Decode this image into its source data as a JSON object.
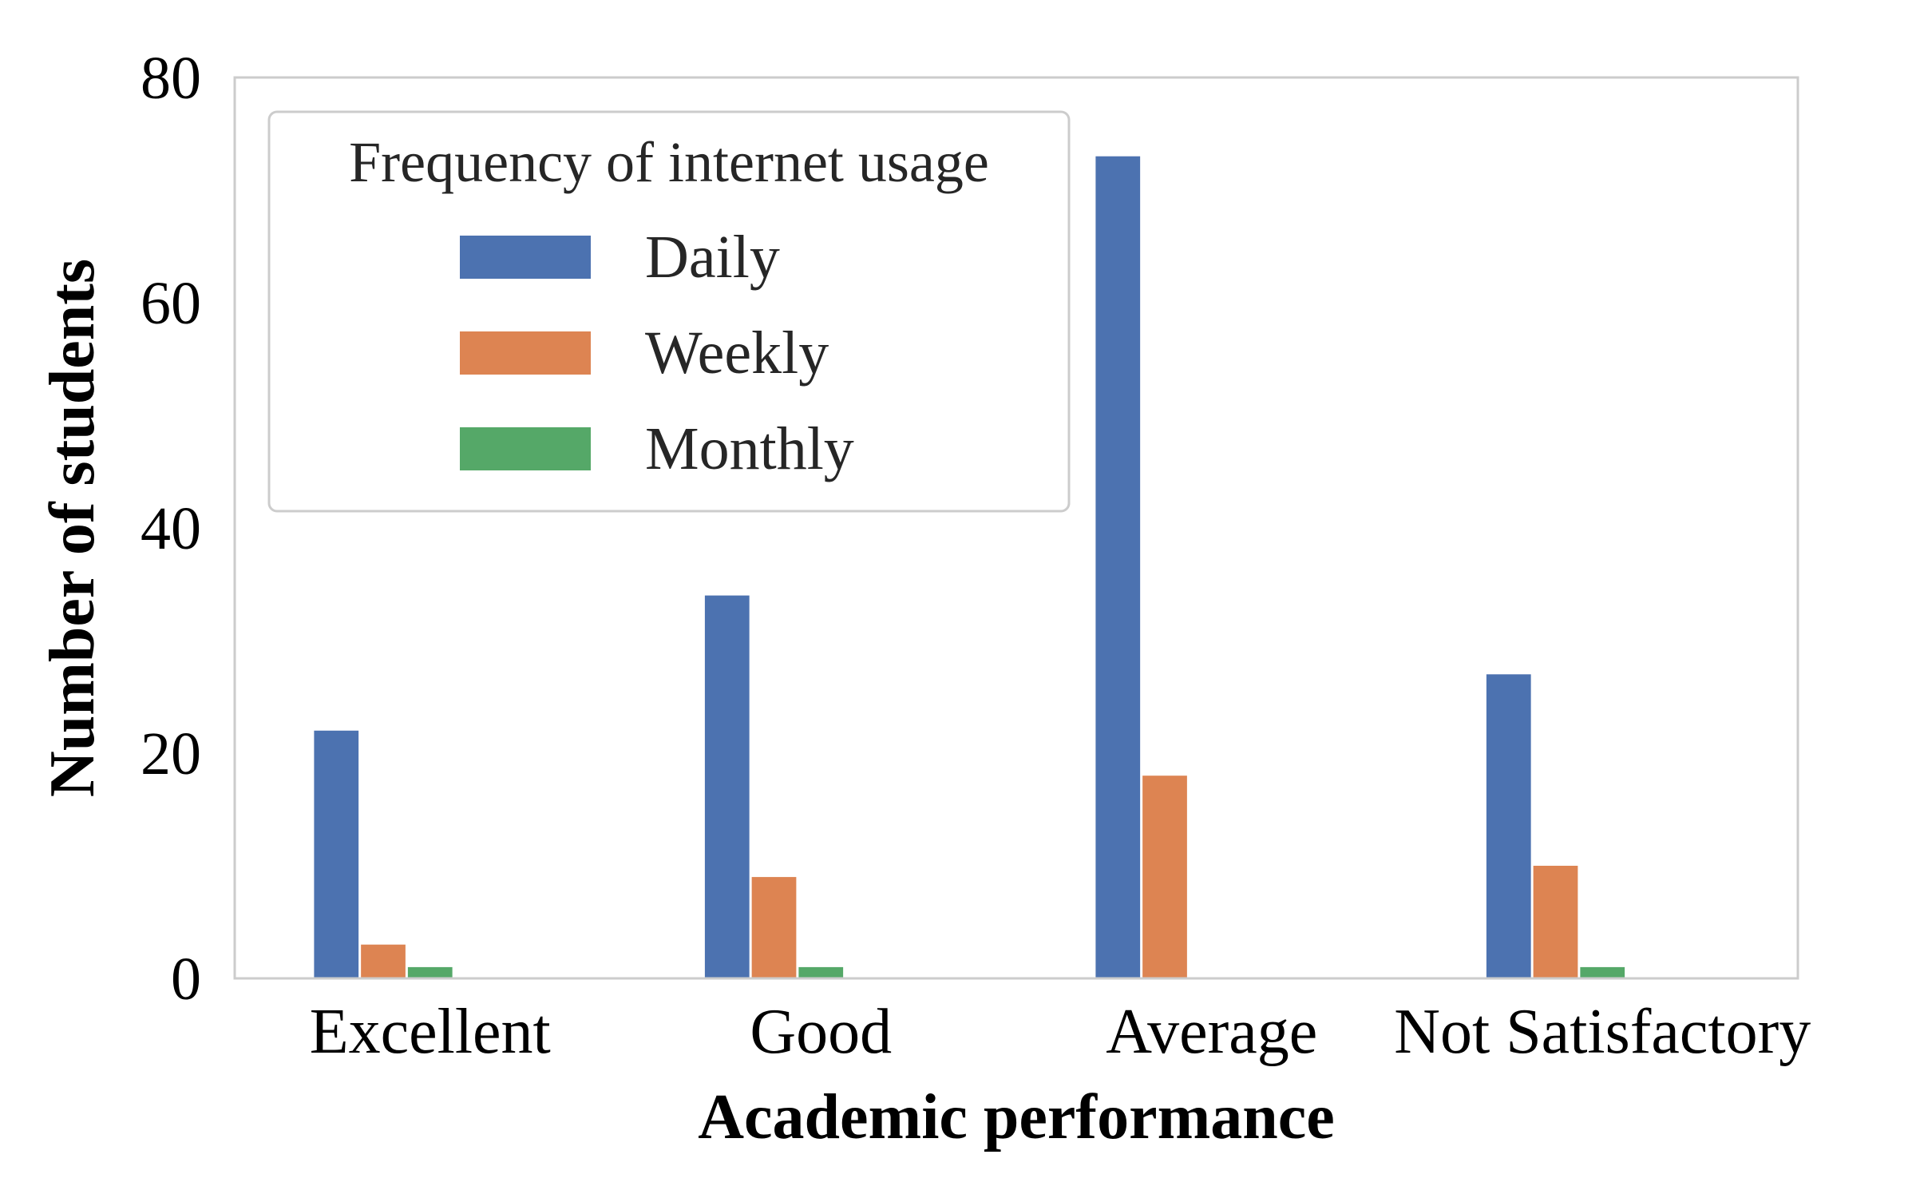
{
  "chart_data": {
    "type": "bar",
    "xlabel": "Academic performance",
    "ylabel": "Number of students",
    "categories": [
      "Excellent",
      "Good",
      "Average",
      "Not Satisfactory"
    ],
    "series": [
      {
        "name": "Daily",
        "color": "#4c72b0",
        "values": [
          22,
          34,
          73,
          27
        ]
      },
      {
        "name": "Weekly",
        "color": "#dd8452",
        "values": [
          3,
          9,
          18,
          10
        ]
      },
      {
        "name": "Monthly",
        "color": "#55a868",
        "values": [
          1,
          1,
          0,
          1
        ]
      }
    ],
    "ylim": [
      0,
      80
    ],
    "yticks": [
      "0",
      "20",
      "40",
      "60",
      "80"
    ],
    "grid": false,
    "legend": {
      "title": "Frequency of internet usage",
      "placement": "upper-left"
    }
  }
}
